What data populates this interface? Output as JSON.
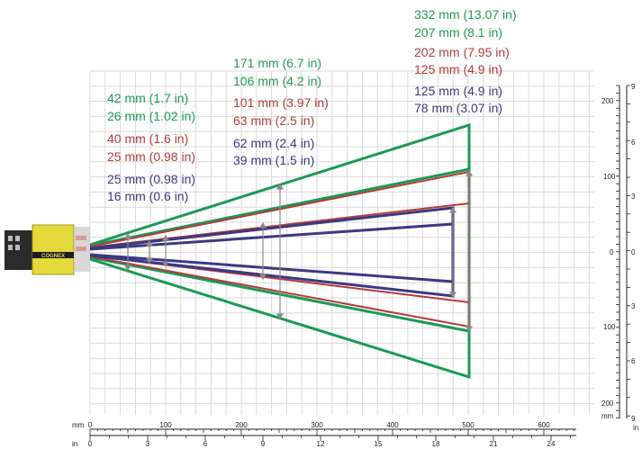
{
  "colors": {
    "green": "#1a9a55",
    "red": "#b53a3a",
    "blue": "#3b3882",
    "grid": "#d9d9d9",
    "arrow": "#8a8a8a",
    "camera_body": "#e4d93a"
  },
  "icons": [
    "camera-device-icon"
  ],
  "camera_label": "COGNEX",
  "near_labels": {
    "green_1": "42 mm (1.7 in)",
    "green_2": "26 mm (1.02 in)",
    "red_1": "40 mm (1.6 in)",
    "red_2": "25 mm (0.98 in)",
    "blue_1": "25 mm (0.98 in)",
    "blue_2": "16 mm (0.6 in)"
  },
  "mid_labels": {
    "green_1": "171 mm (6.7 in)",
    "green_2": "106 mm (4.2 in)",
    "red_1": "101 mm (3.97 in)",
    "red_2": "63 mm (2.5 in)",
    "blue_1": "62 mm (2.4 in)",
    "blue_2": "39 mm (1.5 in)"
  },
  "far_labels": {
    "green_1": "332 mm (13.07 in)",
    "green_2": "207 mm (8.1 in)",
    "red_1": "202 mm (7.95 in)",
    "red_2": "125 mm (4.9 in)",
    "blue_1": "125 mm (4.9 in)",
    "blue_2": "78 mm (3.07 in)"
  },
  "bottom_axis_mm": {
    "unit": "mm",
    "ticks": [
      "0",
      "100",
      "200",
      "300",
      "400",
      "500",
      "600"
    ]
  },
  "bottom_axis_in": {
    "unit": "in",
    "ticks": [
      "0",
      "3",
      "6",
      "9",
      "12",
      "15",
      "18",
      "21",
      "24"
    ]
  },
  "right_axis_mm": {
    "unit": "mm",
    "ticks": [
      "200",
      "100",
      "0",
      "100",
      "200"
    ]
  },
  "right_axis_in": {
    "unit": "in",
    "ticks": [
      "9",
      "6",
      "3",
      "0",
      "3",
      "6",
      "9"
    ]
  }
}
